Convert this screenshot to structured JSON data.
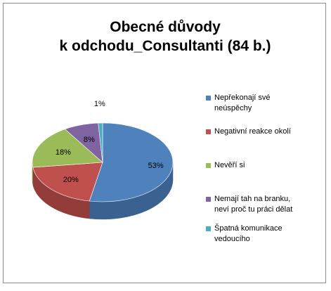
{
  "colors": {
    "series": [
      "#4f81bd",
      "#c0504d",
      "#9bbb59",
      "#8064a2",
      "#4bacc6"
    ],
    "sides": [
      "#3a6291",
      "#943c39",
      "#769040",
      "#5f4a7b",
      "#338ca3"
    ],
    "border": "#8c8c8c"
  },
  "chart_data": {
    "type": "pie",
    "title_lines": [
      "Obecné důvody",
      "k odchodu_Consultanti (84 b.)"
    ],
    "legend_position": "right",
    "style": "3d",
    "slices": [
      {
        "label_lines": [
          "Nepřekonají své",
          "neúspěchy"
        ],
        "value": 53,
        "data_label": "53%"
      },
      {
        "label_lines": [
          "Negativní reakce okolí"
        ],
        "value": 20,
        "data_label": "20%"
      },
      {
        "label_lines": [
          "Nevěří si"
        ],
        "value": 18,
        "data_label": "18%"
      },
      {
        "label_lines": [
          "Nemají tah na branku,",
          "neví proč tu práci dělat"
        ],
        "value": 8,
        "data_label": "8%"
      },
      {
        "label_lines": [
          "Špatná komunikace",
          "vedoucího"
        ],
        "value": 1,
        "data_label": "1%"
      }
    ]
  }
}
